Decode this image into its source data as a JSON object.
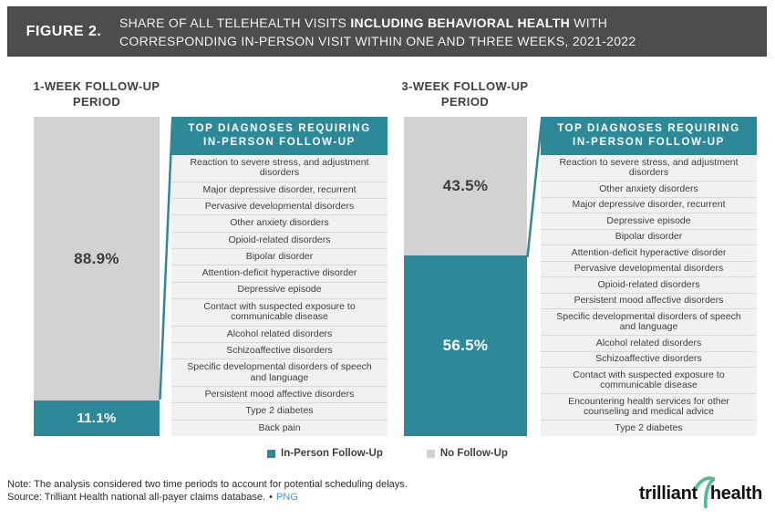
{
  "figure": {
    "label": "FIGURE 2.",
    "title_l1_pre": "SHARE OF ALL TELEHEALTH VISITS ",
    "title_l1_bold": "INCLUDING BEHAVIORAL HEALTH",
    "title_l1_post": " WITH",
    "title_l2": "CORRESPONDING IN-PERSON VISIT WITHIN ONE AND THREE WEEKS, 2021-2022"
  },
  "panels": {
    "heading": "TOP DIAGNOSES REQUIRING IN-PERSON FOLLOW-UP"
  },
  "chart_data": [
    {
      "type": "bar",
      "subtype": "stacked-percent-column",
      "title": "1-WEEK FOLLOW-UP PERIOD",
      "ylim": [
        0,
        100
      ],
      "unit": "%",
      "series": [
        {
          "name": "No Follow-Up",
          "value": 88.9,
          "label": "88.9%",
          "color": "#d2d2d2"
        },
        {
          "name": "In-Person Follow-Up",
          "value": 11.1,
          "label": "11.1%",
          "color": "#2d8998"
        }
      ],
      "top_diagnoses": [
        "Reaction to severe stress, and adjustment disorders",
        "Major depressive disorder, recurrent",
        "Pervasive developmental disorders",
        "Other anxiety disorders",
        "Opioid-related disorders",
        "Bipolar disorder",
        "Attention-deficit hyperactive disorder",
        "Depressive episode",
        "Contact with suspected exposure to communicable disease",
        "Alcohol related disorders",
        "Schizoaffective disorders",
        "Specific developmental disorders of speech and language",
        "Persistent mood affective disorders",
        "Type 2 diabetes",
        "Back pain"
      ]
    },
    {
      "type": "bar",
      "subtype": "stacked-percent-column",
      "title": "3-WEEK FOLLOW-UP PERIOD",
      "ylim": [
        0,
        100
      ],
      "unit": "%",
      "series": [
        {
          "name": "No Follow-Up",
          "value": 43.5,
          "label": "43.5%",
          "color": "#d2d2d2"
        },
        {
          "name": "In-Person Follow-Up",
          "value": 56.5,
          "label": "56.5%",
          "color": "#2d8998"
        }
      ],
      "top_diagnoses": [
        "Reaction to severe stress, and adjustment disorders",
        "Other anxiety disorders",
        "Major depressive disorder, recurrent",
        "Depressive episode",
        "Bipolar disorder",
        "Attention-deficit hyperactive disorder",
        "Pervasive developmental disorders",
        "Opioid-related disorders",
        "Persistent mood affective disorders",
        "Specific developmental disorders of speech and language",
        "Alcohol related disorders",
        "Schizoaffective disorders",
        "Contact with suspected exposure to communicable disease",
        "Encountering health services for other counseling and medical advice",
        "Type 2 diabetes"
      ]
    }
  ],
  "legend": {
    "position": "bottom-center",
    "items": [
      {
        "label": "In-Person Follow-Up",
        "color": "#2d8998"
      },
      {
        "label": "No Follow-Up",
        "color": "#d2d2d2"
      }
    ]
  },
  "footer": {
    "note": "Note: The analysis considered two time periods to account for potential scheduling delays.",
    "source": "Source: Trilliant Health national all-payer claims database.",
    "separator": "•",
    "link_label": "PNG"
  },
  "logo": {
    "word1": "trilliant",
    "word2": "health",
    "swoosh_color": "#4cbd8c"
  },
  "colors": {
    "accent_teal": "#2d8998",
    "bar_gray": "#d2d2d2",
    "header_dark": "#4d4d4d",
    "link_blue": "#3e9bd6"
  }
}
